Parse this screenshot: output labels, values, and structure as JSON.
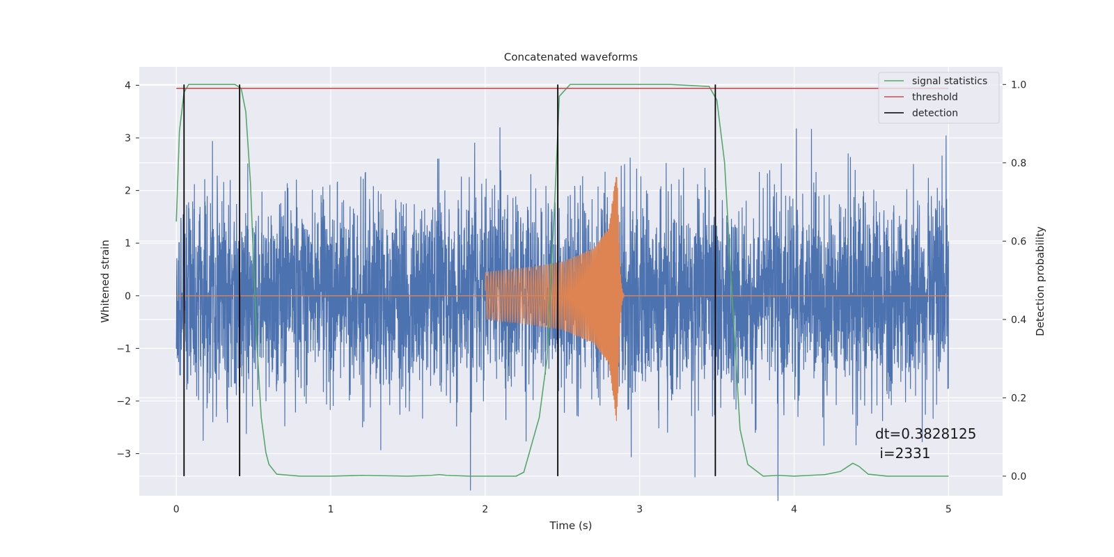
{
  "chart_data": {
    "type": "line",
    "title": "Concatenated waveforms",
    "xlabel": "Time (s)",
    "ylabel": "Whitened strain",
    "y2label": "Detection probability",
    "xlim": [
      -0.24,
      5.35
    ],
    "ylim": [
      -3.8,
      4.35
    ],
    "y2lim": [
      -0.05,
      1.045
    ],
    "x_ticks": [
      0,
      1,
      2,
      3,
      4,
      5
    ],
    "x_tick_labels": [
      "0",
      "1",
      "2",
      "3",
      "4",
      "5"
    ],
    "y_ticks": [
      -3,
      -2,
      -1,
      0,
      1,
      2,
      3,
      4
    ],
    "y_tick_labels": [
      "−3",
      "−2",
      "−1",
      "0",
      "1",
      "2",
      "3",
      "4"
    ],
    "y2_ticks": [
      0.0,
      0.2,
      0.4,
      0.6,
      0.8,
      1.0
    ],
    "y2_tick_labels": [
      "0.0",
      "0.2",
      "0.4",
      "0.6",
      "0.8",
      "1.0"
    ],
    "grid": true,
    "legend_position": "top-right",
    "colors": {
      "strain": "#4c72b0",
      "injection": "#dd8452",
      "signal_statistics": "#55a868",
      "threshold": "#c44e52",
      "detection": "#000000",
      "axes_background": "#eaeaf2",
      "grid": "#ffffff"
    },
    "series": [
      {
        "name": "whitened strain",
        "axis": "left",
        "x_range": [
          0,
          5
        ],
        "envelope_abs_max": 3.9
      },
      {
        "name": "injected waveform",
        "axis": "left",
        "x_range": [
          2.0,
          2.92
        ],
        "x": [
          2.0,
          2.3,
          2.5,
          2.7,
          2.8,
          2.85,
          2.9
        ],
        "amplitude": [
          0.45,
          0.55,
          0.65,
          0.9,
          1.3,
          2.4,
          0.05
        ]
      },
      {
        "name": "signal statistics",
        "axis": "right",
        "x": [
          0,
          0.02,
          0.05,
          0.08,
          0.12,
          0.38,
          0.42,
          0.45,
          0.48,
          0.5,
          0.52,
          0.55,
          0.58,
          0.6,
          0.65,
          0.8,
          1.0,
          1.2,
          1.5,
          1.65,
          1.7,
          1.75,
          1.9,
          2.1,
          2.2,
          2.25,
          2.3,
          2.35,
          2.4,
          2.45,
          2.48,
          2.55,
          2.8,
          3.2,
          3.45,
          3.5,
          3.55,
          3.6,
          3.65,
          3.7,
          3.8,
          3.9,
          4.0,
          4.2,
          4.3,
          4.35,
          4.38,
          4.42,
          4.48,
          4.6,
          5.0
        ],
        "y": [
          0.65,
          0.88,
          0.98,
          1.0,
          1.0,
          1.0,
          0.99,
          0.93,
          0.75,
          0.55,
          0.35,
          0.15,
          0.06,
          0.03,
          0.005,
          0.0,
          0.0,
          0.002,
          0.0,
          0.002,
          0.004,
          0.002,
          0.0,
          0.0,
          0.0,
          0.01,
          0.08,
          0.15,
          0.3,
          0.7,
          0.97,
          1.0,
          1.0,
          1.0,
          0.995,
          0.96,
          0.8,
          0.45,
          0.12,
          0.03,
          0.0,
          0.002,
          0.0,
          0.004,
          0.012,
          0.025,
          0.033,
          0.025,
          0.005,
          0.0,
          0.0
        ]
      },
      {
        "name": "threshold",
        "axis": "right",
        "x": [
          0,
          5
        ],
        "y": [
          0.99,
          0.99
        ]
      },
      {
        "name": "detection",
        "axis": "right",
        "x": [
          0.05,
          0.41,
          2.47,
          3.49
        ],
        "y_range": [
          0.0,
          1.0
        ]
      }
    ],
    "legend": [
      "signal statistics",
      "threshold",
      "detection"
    ],
    "annotation": "dt=0.3828125\n i=2331"
  }
}
